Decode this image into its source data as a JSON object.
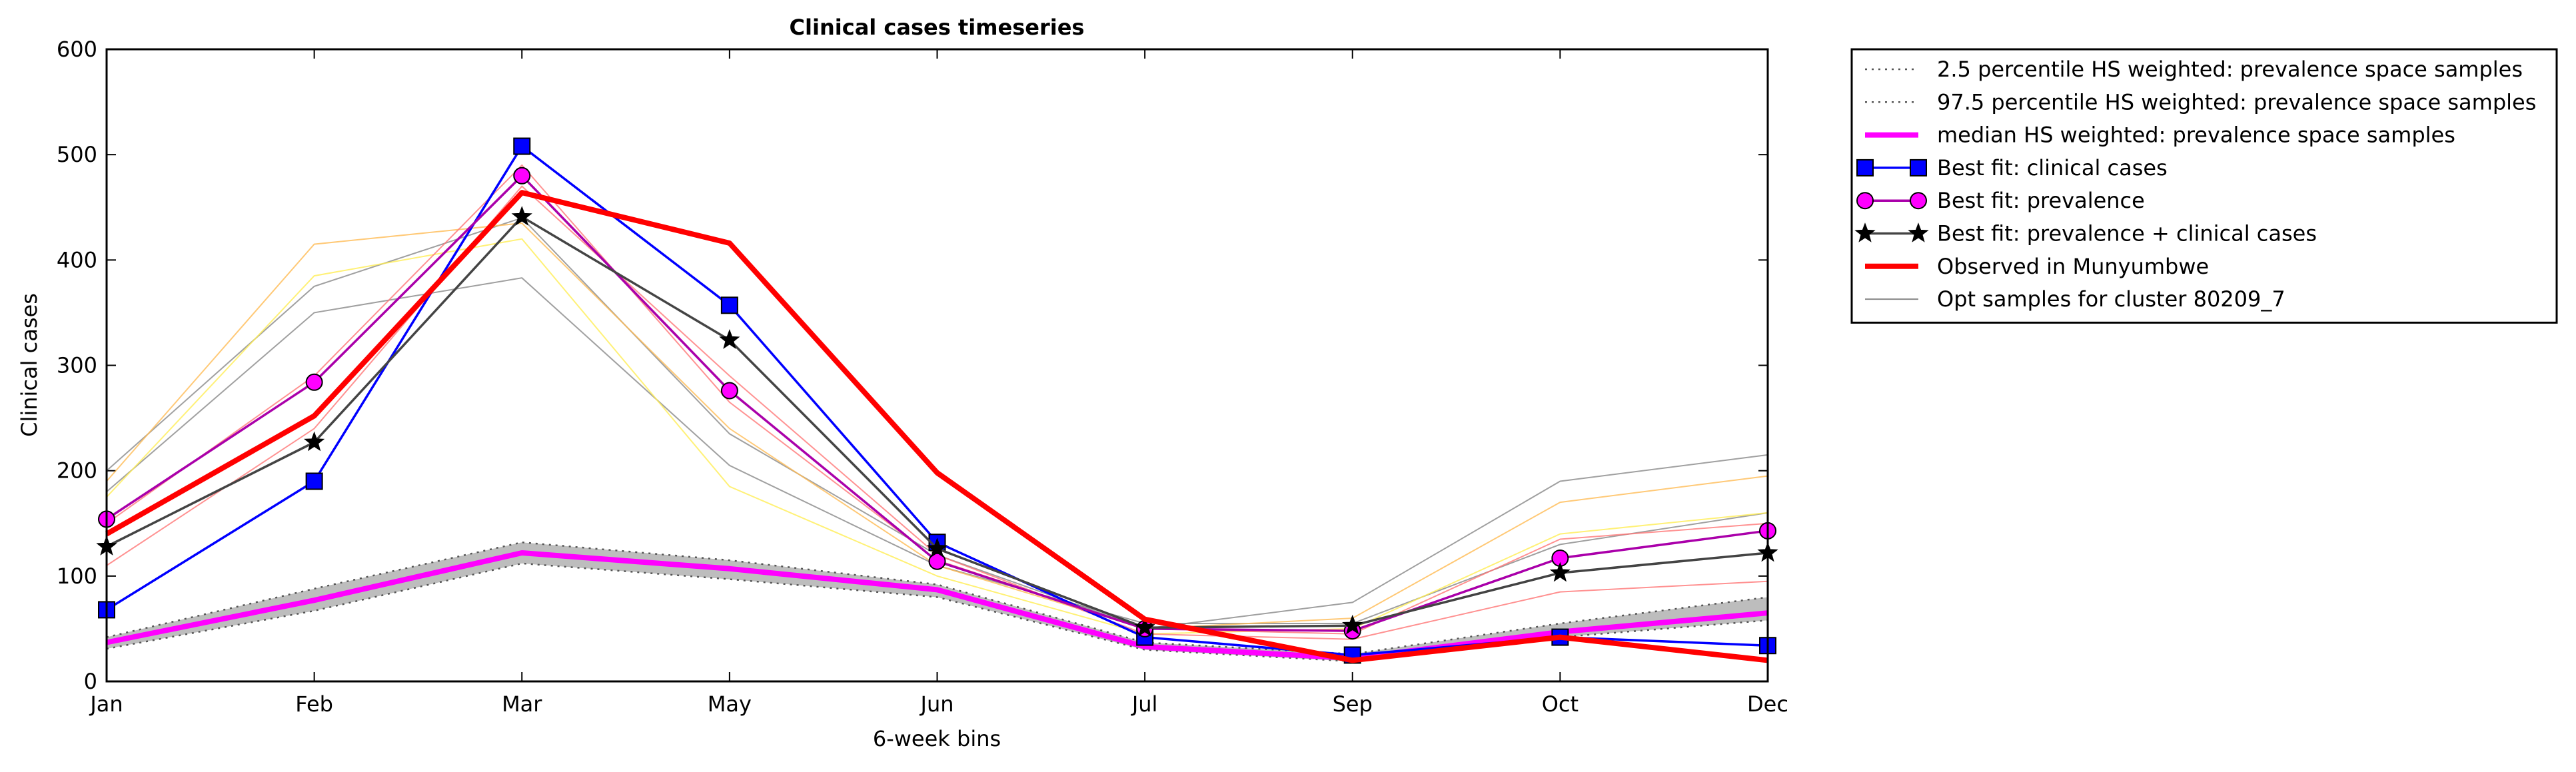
{
  "chart_data": {
    "type": "line",
    "title": "Clinical cases timeseries",
    "x_label": "6-week bins",
    "y_label": "Clinical cases",
    "categories": [
      "Jan",
      "Feb",
      "Mar",
      "May",
      "Jun",
      "Jul",
      "Sep",
      "Oct",
      "Dec"
    ],
    "ylim": [
      0,
      600
    ],
    "yticks": [
      0,
      100,
      200,
      300,
      400,
      500,
      600
    ],
    "legend": "outside upper right",
    "fill_between": {
      "series": [
        0,
        1
      ],
      "color": "#bdbdbd"
    },
    "series": [
      {
        "name": "2.5 percentile HS weighted: prevalence space samples",
        "color": "#555555",
        "linestyle": "dotted",
        "values": [
          31,
          67,
          112,
          97,
          80,
          30,
          19,
          42,
          58
        ]
      },
      {
        "name": "97.5 percentile HS weighted: prevalence space samples",
        "color": "#555555",
        "linestyle": "dotted",
        "values": [
          42,
          88,
          132,
          115,
          92,
          37,
          26,
          55,
          80
        ]
      },
      {
        "name": "median HS weighted: prevalence space samples",
        "color": "#ff00ff",
        "linestyle": "thick",
        "values": [
          37,
          77,
          122,
          107,
          87,
          33,
          22,
          47,
          65
        ]
      },
      {
        "name": "Best fit: clinical cases",
        "color": "#0000ff",
        "marker": "square",
        "values": [
          68,
          190,
          508,
          357,
          132,
          42,
          25,
          42,
          34
        ]
      },
      {
        "name": "Best fit: prevalence",
        "color": "#aa00aa",
        "marker": "circle",
        "marker_color": "#ff00ff",
        "values": [
          154,
          284,
          480,
          276,
          114,
          50,
          48,
          117,
          143
        ]
      },
      {
        "name": "Best fit: prevalence + clinical cases",
        "color": "#444444",
        "marker": "star",
        "marker_color": "#000000",
        "values": [
          128,
          227,
          441,
          324,
          126,
          51,
          53,
          103,
          122
        ]
      },
      {
        "name": "Observed in Munyumbwe",
        "color": "#ff0000",
        "linestyle": "thick",
        "values": [
          140,
          252,
          464,
          416,
          198,
          59,
          20,
          42,
          20
        ]
      }
    ],
    "opt_samples": {
      "name": "Opt samples for cluster 80209_7",
      "color": "#888888",
      "lines": [
        {
          "color": "#888888",
          "values": [
            200,
            375,
            440,
            235,
            120,
            50,
            75,
            190,
            215
          ]
        },
        {
          "color": "#888888",
          "values": [
            180,
            350,
            383,
            205,
            110,
            55,
            55,
            130,
            160
          ]
        },
        {
          "color": "#ffee55",
          "values": [
            175,
            385,
            420,
            185,
            100,
            45,
            50,
            140,
            160
          ]
        },
        {
          "color": "#ffbb55",
          "values": [
            190,
            415,
            435,
            240,
            110,
            50,
            60,
            170,
            195
          ]
        },
        {
          "color": "#ff7777",
          "values": [
            110,
            240,
            470,
            290,
            120,
            45,
            40,
            85,
            95
          ]
        },
        {
          "color": "#ff7777",
          "values": [
            150,
            290,
            490,
            265,
            115,
            50,
            45,
            135,
            150
          ]
        }
      ]
    }
  }
}
